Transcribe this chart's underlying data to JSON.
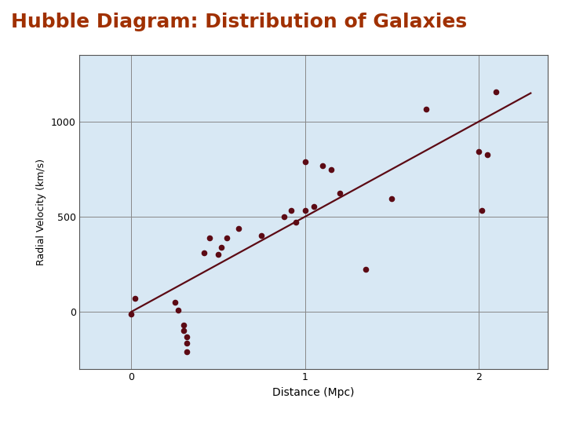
{
  "title": "Hubble Diagram: Distribution of Galaxies",
  "title_color": "#A03000",
  "title_fontsize": 18,
  "title_fontweight": "bold",
  "xlabel": "Distance (Mpc)",
  "ylabel": "Radial Velocity (km/s)",
  "xlim": [
    -0.3,
    2.4
  ],
  "ylim": [
    -300,
    1350
  ],
  "xticks": [
    0,
    1,
    2
  ],
  "yticks": [
    0,
    500,
    1000
  ],
  "bg_color": "#d8e8f4",
  "grid_color": "#888888",
  "dot_color": "#5C0A14",
  "line_color": "#5C0A14",
  "scatter_x": [
    0.02,
    0.0,
    0.25,
    0.27,
    0.3,
    0.3,
    0.32,
    0.32,
    0.32,
    0.42,
    0.45,
    0.5,
    0.52,
    0.55,
    0.62,
    0.75,
    0.88,
    0.92,
    0.95,
    1.0,
    1.0,
    1.05,
    1.1,
    1.15,
    1.2,
    1.35,
    1.5,
    1.7,
    2.0,
    2.02,
    2.05,
    2.1
  ],
  "scatter_y": [
    70,
    -10,
    50,
    10,
    -70,
    -100,
    -130,
    -165,
    -210,
    310,
    390,
    300,
    340,
    390,
    440,
    400,
    500,
    535,
    470,
    790,
    535,
    555,
    770,
    750,
    625,
    225,
    595,
    1065,
    845,
    535,
    825,
    1155
  ],
  "line_x_start": 0.0,
  "line_x_end": 2.3,
  "line_slope": 500,
  "line_intercept": 0,
  "figsize": [
    7.2,
    5.4
  ],
  "dpi": 100
}
